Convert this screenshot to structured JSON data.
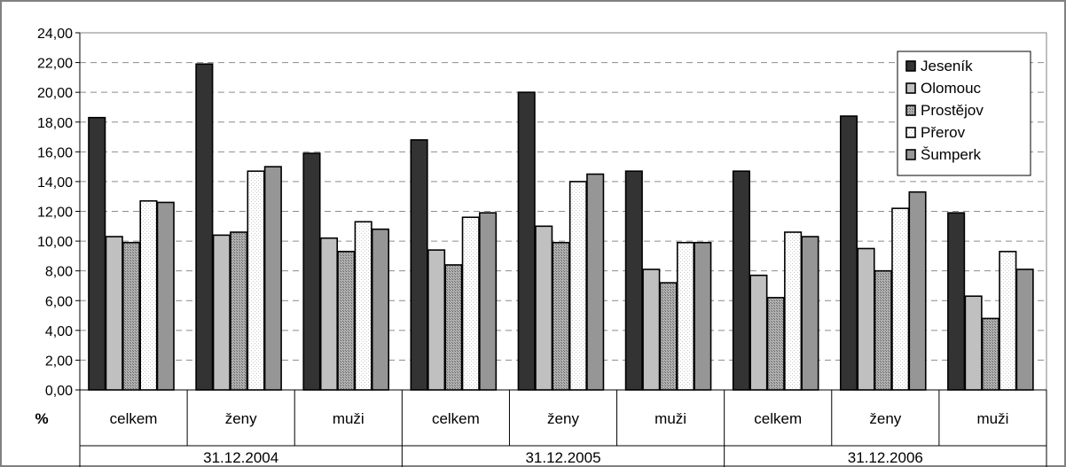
{
  "chart_data": {
    "type": "bar",
    "title": "",
    "xlabel": "",
    "ylabel": "",
    "unit": "%",
    "ylim": [
      0,
      24
    ],
    "y_ticks": [
      "0,00",
      "2,00",
      "4,00",
      "6,00",
      "8,00",
      "10,00",
      "12,00",
      "14,00",
      "16,00",
      "18,00",
      "20,00",
      "22,00",
      "24,00"
    ],
    "grid": "horizontal dashed",
    "legend_position": "top-right",
    "groups": [
      "31.12.2004",
      "31.12.2005",
      "31.12.2006"
    ],
    "categories": [
      "celkem",
      "ženy",
      "muži",
      "celkem",
      "ženy",
      "muži",
      "celkem",
      "ženy",
      "muži"
    ],
    "series": [
      {
        "name": "Jeseník",
        "color": "#333333",
        "values": [
          18.3,
          21.9,
          15.9,
          16.8,
          20.0,
          14.7,
          14.7,
          18.4,
          11.9
        ]
      },
      {
        "name": "Olomouc",
        "color": "#c0c0c0",
        "values": [
          10.3,
          10.4,
          10.2,
          9.4,
          11.0,
          8.1,
          7.7,
          9.5,
          6.3
        ]
      },
      {
        "name": "Prostějov",
        "color": "#a0a0a0",
        "values": [
          9.9,
          10.6,
          9.3,
          8.4,
          9.9,
          7.2,
          6.2,
          8.0,
          4.8
        ]
      },
      {
        "name": "Přerov",
        "color": "#ffffff",
        "values": [
          12.7,
          14.7,
          11.3,
          11.6,
          14.0,
          9.9,
          10.6,
          12.2,
          9.3
        ]
      },
      {
        "name": "Šumperk",
        "color": "#969696",
        "values": [
          12.6,
          15.0,
          10.8,
          11.9,
          14.5,
          9.9,
          10.3,
          13.3,
          8.1
        ]
      }
    ]
  }
}
